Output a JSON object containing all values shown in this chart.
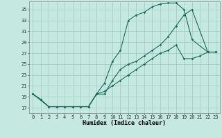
{
  "title": "",
  "xlabel": "Humidex (Indice chaleur)",
  "ylabel": "",
  "bg_color": "#c5e8e0",
  "grid_color": "#9eccc4",
  "line_color": "#1a6b5a",
  "xlim": [
    -0.5,
    23.5
  ],
  "ylim": [
    16.0,
    36.5
  ],
  "yticks": [
    17,
    19,
    21,
    23,
    25,
    27,
    29,
    31,
    33,
    35
  ],
  "xticks": [
    0,
    1,
    2,
    3,
    4,
    5,
    6,
    7,
    8,
    9,
    10,
    11,
    12,
    13,
    14,
    15,
    16,
    17,
    18,
    19,
    20,
    21,
    22,
    23
  ],
  "curve1_x": [
    0,
    1,
    2,
    3,
    4,
    5,
    6,
    7,
    8,
    9,
    10,
    11,
    12,
    13,
    14,
    15,
    16,
    17,
    18,
    19,
    20,
    22,
    23
  ],
  "curve1_y": [
    19.5,
    18.5,
    17.2,
    17.2,
    17.2,
    17.2,
    17.2,
    17.2,
    19.5,
    21.5,
    25.5,
    27.5,
    33.0,
    34.0,
    34.5,
    35.5,
    36.0,
    36.2,
    36.2,
    35.0,
    29.5,
    27.2,
    27.2
  ],
  "curve2_x": [
    0,
    2,
    3,
    4,
    5,
    6,
    7,
    8,
    9,
    10,
    11,
    12,
    13,
    14,
    15,
    16,
    17,
    18,
    19,
    20,
    22,
    23
  ],
  "curve2_y": [
    19.5,
    17.2,
    17.2,
    17.2,
    17.2,
    17.2,
    17.2,
    19.5,
    19.5,
    22.0,
    24.0,
    25.0,
    25.5,
    26.5,
    27.5,
    28.5,
    30.0,
    32.0,
    34.0,
    35.0,
    27.2,
    27.2
  ],
  "curve3_x": [
    0,
    1,
    2,
    3,
    4,
    5,
    6,
    7,
    8,
    9,
    10,
    11,
    12,
    13,
    14,
    15,
    16,
    17,
    18,
    19,
    20,
    21,
    22,
    23
  ],
  "curve3_y": [
    19.5,
    18.5,
    17.2,
    17.2,
    17.2,
    17.2,
    17.2,
    17.2,
    19.5,
    20.0,
    21.0,
    22.0,
    23.0,
    24.0,
    25.0,
    26.0,
    27.0,
    27.5,
    28.5,
    26.0,
    26.0,
    26.5,
    27.2,
    27.2
  ],
  "tick_fontsize": 5.0,
  "xlabel_fontsize": 6.0,
  "marker_size": 1.8,
  "linewidth": 0.8
}
